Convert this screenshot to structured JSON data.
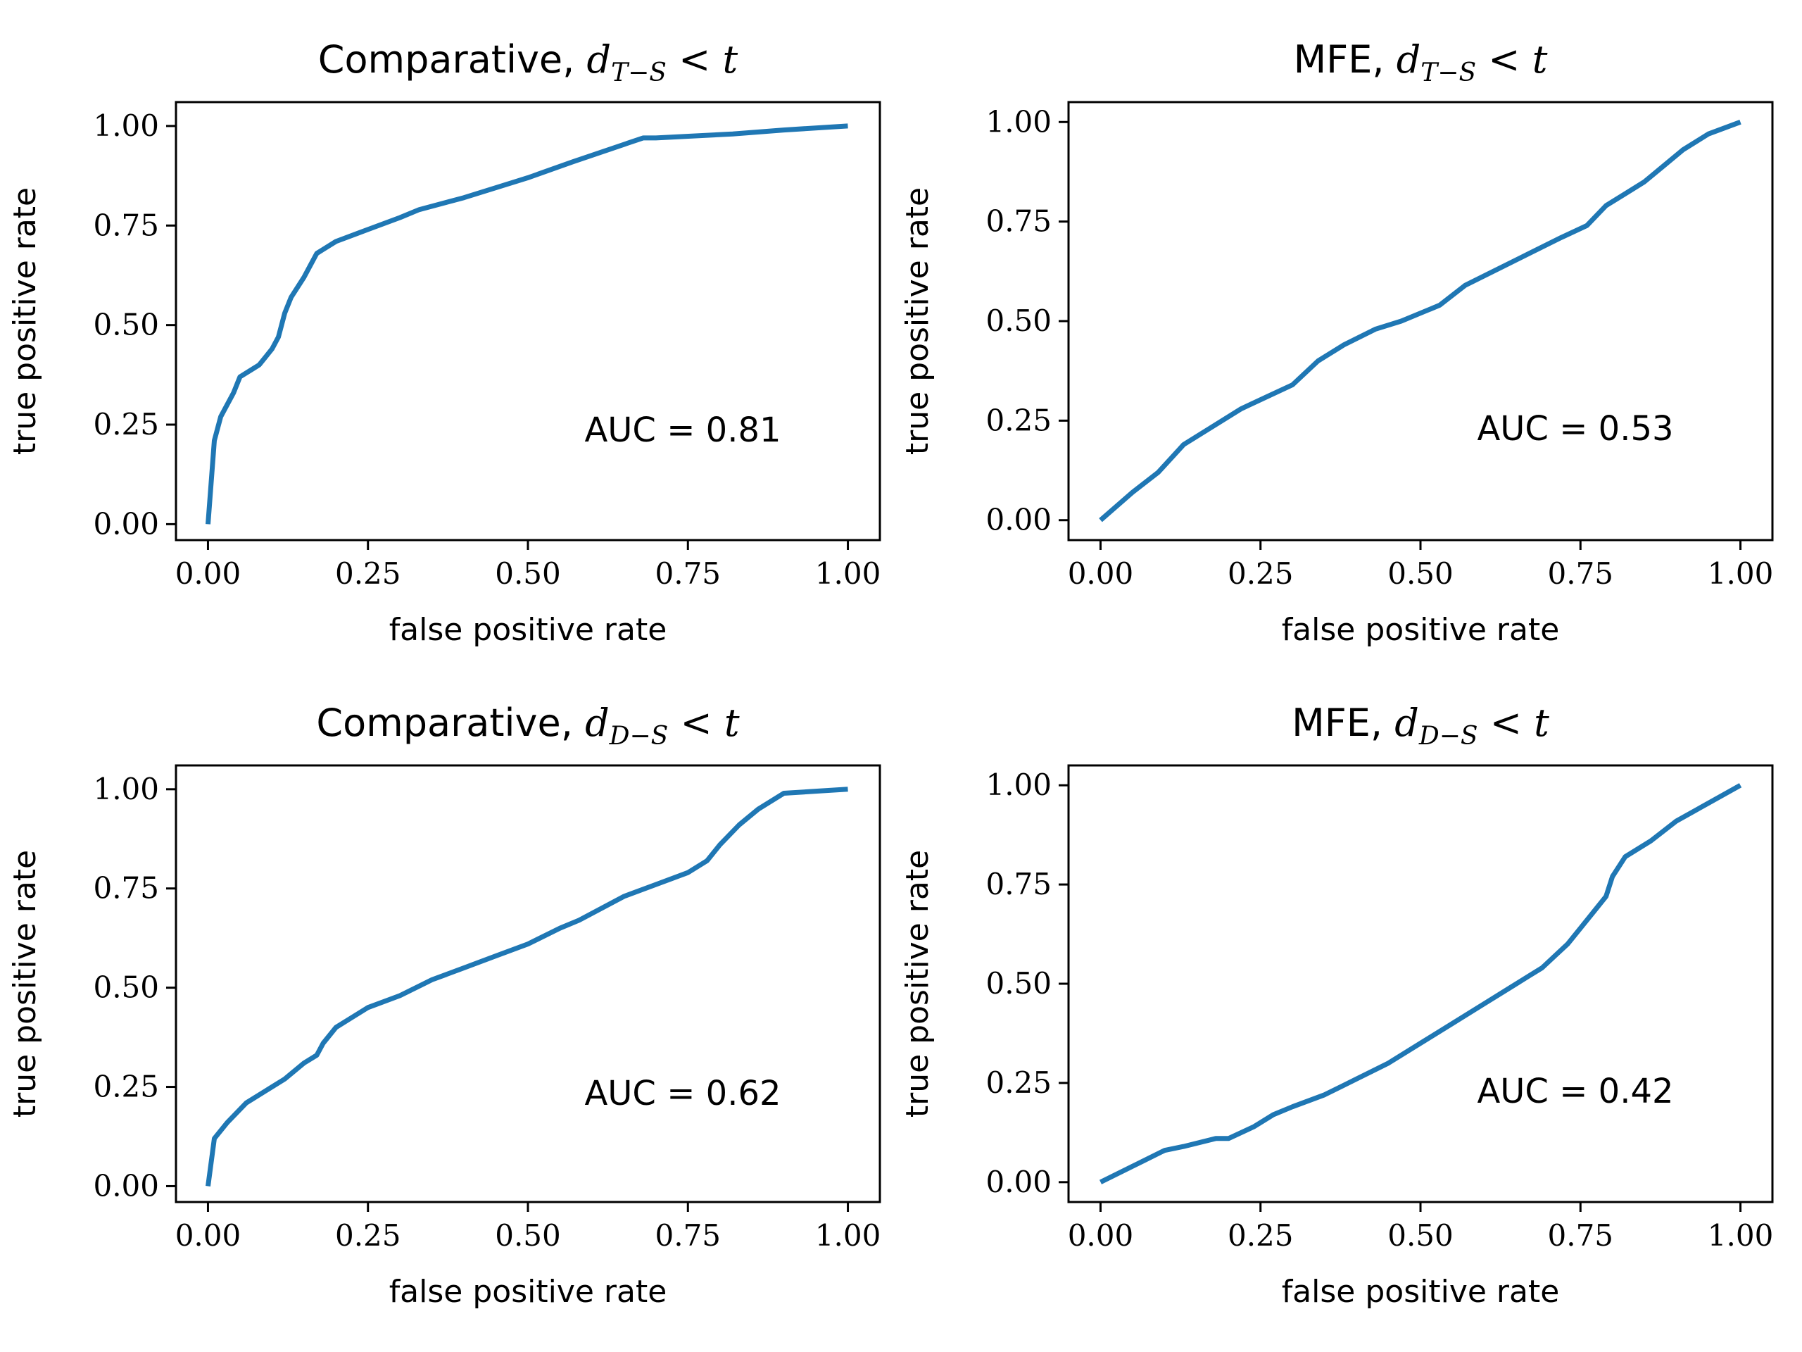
{
  "colors": {
    "series": "#1f77b4"
  },
  "chart_data": [
    {
      "type": "line",
      "title": "Comparative, ",
      "title_math": {
        "base": "d",
        "sub": "T−S",
        "rest": " < t"
      },
      "xlabel": "false positive rate",
      "ylabel": "true positive rate",
      "xlim": [
        -0.05,
        1.05
      ],
      "ylim": [
        -0.04,
        1.06
      ],
      "xticks": [
        "0.00",
        "0.25",
        "0.50",
        "0.75",
        "1.00"
      ],
      "yticks": [
        "0.00",
        "0.25",
        "0.50",
        "0.75",
        "1.00"
      ],
      "annotation": "AUC = 0.81",
      "x": [
        0.0,
        0.01,
        0.02,
        0.04,
        0.05,
        0.07,
        0.08,
        0.09,
        0.1,
        0.11,
        0.12,
        0.13,
        0.15,
        0.16,
        0.17,
        0.18,
        0.2,
        0.25,
        0.3,
        0.33,
        0.4,
        0.5,
        0.57,
        0.68,
        0.7,
        0.82,
        0.9,
        1.0
      ],
      "y": [
        0.0,
        0.21,
        0.27,
        0.33,
        0.37,
        0.39,
        0.4,
        0.42,
        0.44,
        0.47,
        0.53,
        0.57,
        0.62,
        0.65,
        0.68,
        0.69,
        0.71,
        0.74,
        0.77,
        0.79,
        0.82,
        0.87,
        0.91,
        0.97,
        0.97,
        0.98,
        0.99,
        1.0
      ]
    },
    {
      "type": "line",
      "title": "MFE, ",
      "title_math": {
        "base": "d",
        "sub": "T−S",
        "rest": " < t"
      },
      "xlabel": "false positive rate",
      "ylabel": "true positive rate",
      "xlim": [
        -0.05,
        1.05
      ],
      "ylim": [
        -0.05,
        1.05
      ],
      "xticks": [
        "0.00",
        "0.25",
        "0.50",
        "0.75",
        "1.00"
      ],
      "yticks": [
        "0.00",
        "0.25",
        "0.50",
        "0.75",
        "1.00"
      ],
      "annotation": "AUC = 0.53",
      "x": [
        0.0,
        0.05,
        0.09,
        0.13,
        0.17,
        0.22,
        0.26,
        0.3,
        0.34,
        0.38,
        0.43,
        0.47,
        0.5,
        0.53,
        0.57,
        0.62,
        0.67,
        0.72,
        0.76,
        0.79,
        0.82,
        0.85,
        0.88,
        0.91,
        0.95,
        1.0
      ],
      "y": [
        0.0,
        0.07,
        0.12,
        0.19,
        0.23,
        0.28,
        0.31,
        0.34,
        0.4,
        0.44,
        0.48,
        0.5,
        0.52,
        0.54,
        0.59,
        0.63,
        0.67,
        0.71,
        0.74,
        0.79,
        0.82,
        0.85,
        0.89,
        0.93,
        0.97,
        1.0
      ]
    },
    {
      "type": "line",
      "title": "Comparative, ",
      "title_math": {
        "base": "d",
        "sub": "D−S",
        "rest": " < t"
      },
      "xlabel": "false positive rate",
      "ylabel": "true positive rate",
      "xlim": [
        -0.05,
        1.05
      ],
      "ylim": [
        -0.04,
        1.06
      ],
      "xticks": [
        "0.00",
        "0.25",
        "0.50",
        "0.75",
        "1.00"
      ],
      "yticks": [
        "0.00",
        "0.25",
        "0.50",
        "0.75",
        "1.00"
      ],
      "annotation": "AUC = 0.62",
      "x": [
        0.0,
        0.01,
        0.03,
        0.06,
        0.09,
        0.12,
        0.15,
        0.17,
        0.18,
        0.2,
        0.22,
        0.25,
        0.3,
        0.35,
        0.4,
        0.45,
        0.5,
        0.55,
        0.58,
        0.65,
        0.7,
        0.75,
        0.78,
        0.8,
        0.83,
        0.86,
        0.9,
        1.0
      ],
      "y": [
        0.0,
        0.12,
        0.16,
        0.21,
        0.24,
        0.27,
        0.31,
        0.33,
        0.36,
        0.4,
        0.42,
        0.45,
        0.48,
        0.52,
        0.55,
        0.58,
        0.61,
        0.65,
        0.67,
        0.73,
        0.76,
        0.79,
        0.82,
        0.86,
        0.91,
        0.95,
        0.99,
        1.0
      ]
    },
    {
      "type": "line",
      "title": "MFE, ",
      "title_math": {
        "base": "d",
        "sub": "D−S",
        "rest": " < t"
      },
      "xlabel": "false positive rate",
      "ylabel": "true positive rate",
      "xlim": [
        -0.05,
        1.05
      ],
      "ylim": [
        -0.05,
        1.05
      ],
      "xticks": [
        "0.00",
        "0.25",
        "0.50",
        "0.75",
        "1.00"
      ],
      "yticks": [
        "0.00",
        "0.25",
        "0.50",
        "0.75",
        "1.00"
      ],
      "annotation": "AUC = 0.42",
      "x": [
        0.0,
        0.05,
        0.1,
        0.13,
        0.18,
        0.2,
        0.24,
        0.27,
        0.3,
        0.35,
        0.4,
        0.45,
        0.5,
        0.55,
        0.6,
        0.64,
        0.67,
        0.69,
        0.71,
        0.73,
        0.75,
        0.77,
        0.79,
        0.8,
        0.82,
        0.86,
        0.9,
        1.0
      ],
      "y": [
        0.0,
        0.04,
        0.08,
        0.09,
        0.11,
        0.11,
        0.14,
        0.17,
        0.19,
        0.22,
        0.26,
        0.3,
        0.35,
        0.4,
        0.45,
        0.49,
        0.52,
        0.54,
        0.57,
        0.6,
        0.64,
        0.68,
        0.72,
        0.77,
        0.82,
        0.86,
        0.91,
        1.0
      ]
    }
  ]
}
